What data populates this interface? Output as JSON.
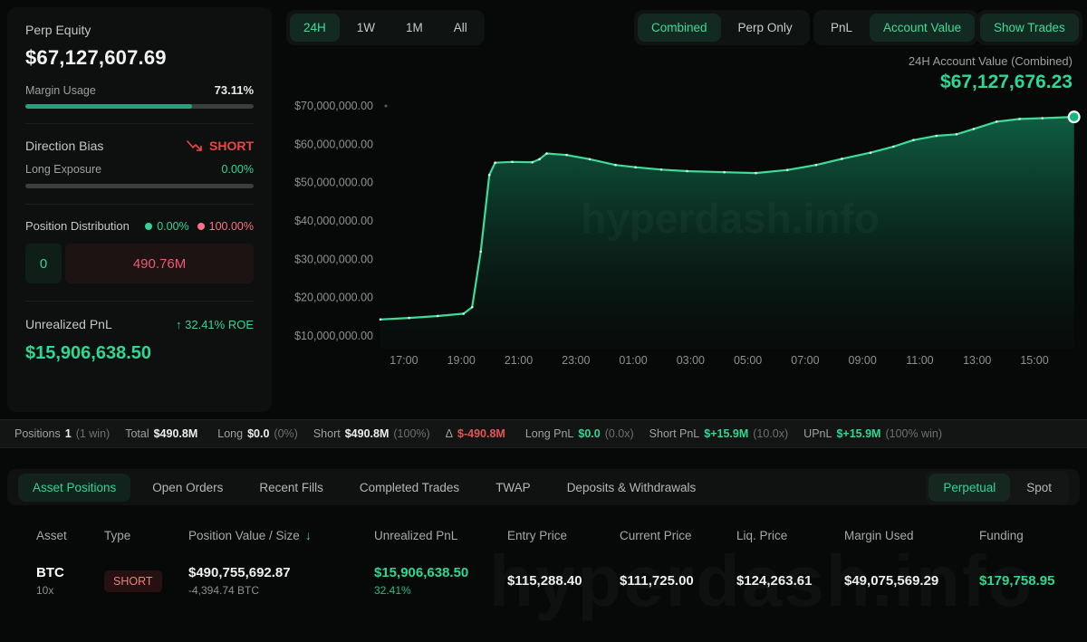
{
  "sidebar": {
    "perp_equity_label": "Perp Equity",
    "perp_equity_value": "$67,127,607.69",
    "margin_usage_label": "Margin Usage",
    "margin_usage_value": "73.11%",
    "margin_usage_pct": 73.11,
    "direction_bias_label": "Direction Bias",
    "direction_bias_value": "SHORT",
    "long_exposure_label": "Long Exposure",
    "long_exposure_value": "0.00%",
    "long_exposure_pct": 0,
    "position_distribution_label": "Position Distribution",
    "dist_long_pct": "0.00%",
    "dist_short_pct": "100.00%",
    "dist_long_amount": "0",
    "dist_short_amount": "490.76M",
    "unrealized_pnl_label": "Unrealized PnL",
    "roe_arrow": "↑",
    "roe_value": "32.41% ROE",
    "unrealized_pnl_value": "$15,906,638.50"
  },
  "controls": {
    "ranges": [
      {
        "label": "24H",
        "active": true
      },
      {
        "label": "1W",
        "active": false
      },
      {
        "label": "1M",
        "active": false
      },
      {
        "label": "All",
        "active": false
      }
    ],
    "modes": [
      {
        "label": "Combined",
        "active": true
      },
      {
        "label": "Perp Only",
        "active": false
      }
    ],
    "views": [
      {
        "label": "PnL",
        "active": false
      },
      {
        "label": "Account Value",
        "active": true
      }
    ],
    "show_trades_label": "Show Trades"
  },
  "chart_header": {
    "title": "24H Account Value (Combined)",
    "value": "$67,127,676.23"
  },
  "chart_data": {
    "type": "area",
    "title": "24H Account Value (Combined)",
    "currency": "USD",
    "value_unit": "millions USD",
    "ylim": [
      10000000,
      70000000
    ],
    "grid": false,
    "y_ticks": [
      {
        "v": 70,
        "label": "$70,000,000.00"
      },
      {
        "v": 60,
        "label": "$60,000,000.00"
      },
      {
        "v": 50,
        "label": "$50,000,000.00"
      },
      {
        "v": 40,
        "label": "$40,000,000.00"
      },
      {
        "v": 30,
        "label": "$30,000,000.00"
      },
      {
        "v": 20,
        "label": "$20,000,000.00"
      },
      {
        "v": 10,
        "label": "$10,000,000.00"
      }
    ],
    "x_tick_labels": [
      "17:00",
      "19:00",
      "21:00",
      "23:00",
      "01:00",
      "03:00",
      "05:00",
      "07:00",
      "09:00",
      "11:00",
      "13:00",
      "15:00"
    ],
    "x_first_tick_hour_offset": 0.82,
    "x_tick_step_hours": 2,
    "x_span_hours": 24.4,
    "points": [
      [
        0,
        14.3
      ],
      [
        1.0,
        14.7
      ],
      [
        2.0,
        15.2
      ],
      [
        2.9,
        15.8
      ],
      [
        3.2,
        17.5
      ],
      [
        3.5,
        32.0
      ],
      [
        3.8,
        52.0
      ],
      [
        4.0,
        55.2
      ],
      [
        4.6,
        55.4
      ],
      [
        5.3,
        55.3
      ],
      [
        5.55,
        56.1
      ],
      [
        5.8,
        57.6
      ],
      [
        6.5,
        57.2
      ],
      [
        7.3,
        56.1
      ],
      [
        8.2,
        54.6
      ],
      [
        8.9,
        54.0
      ],
      [
        9.8,
        53.4
      ],
      [
        10.7,
        53.0
      ],
      [
        12.0,
        52.7
      ],
      [
        13.1,
        52.5
      ],
      [
        14.2,
        53.3
      ],
      [
        15.2,
        54.6
      ],
      [
        16.1,
        56.2
      ],
      [
        17.1,
        57.8
      ],
      [
        17.9,
        59.4
      ],
      [
        18.6,
        61.1
      ],
      [
        19.4,
        62.2
      ],
      [
        20.1,
        62.6
      ],
      [
        20.7,
        64.0
      ],
      [
        21.5,
        65.9
      ],
      [
        22.3,
        66.6
      ],
      [
        23.1,
        66.8
      ],
      [
        24.2,
        67.13
      ]
    ],
    "end_value_label": "$67,127,676.23",
    "watermark": "hyperdash.info",
    "line_color": "#3ddc97",
    "marker_color": "#10b981"
  },
  "summary": {
    "items": [
      {
        "label": "Positions",
        "value": "1",
        "extra": "(1 win)"
      },
      {
        "label": "Total",
        "value": "$490.8M",
        "extra": ""
      },
      {
        "label": "Long",
        "value": "$0.0",
        "extra": "(0%)"
      },
      {
        "label": "Short",
        "value": "$490.8M",
        "extra": "(100%)"
      },
      {
        "label": "Δ",
        "value": "$-490.8M",
        "extra": ""
      },
      {
        "label": "Long PnL",
        "value": "$0.0",
        "extra": "(0.0x)"
      },
      {
        "label": "Short PnL",
        "value": "$+15.9M",
        "extra": "(10.0x)"
      },
      {
        "label": "UPnL",
        "value": "$+15.9M",
        "extra": "(100% win)"
      }
    ]
  },
  "tabs": {
    "left": [
      {
        "label": "Asset Positions",
        "active": true
      },
      {
        "label": "Open Orders",
        "active": false
      },
      {
        "label": "Recent Fills",
        "active": false
      },
      {
        "label": "Completed Trades",
        "active": false
      },
      {
        "label": "TWAP",
        "active": false
      },
      {
        "label": "Deposits & Withdrawals",
        "active": false
      }
    ],
    "right": [
      {
        "label": "Perpetual",
        "active": true
      },
      {
        "label": "Spot",
        "active": false
      }
    ]
  },
  "table": {
    "headers": [
      "Asset",
      "Type",
      "Position Value / Size",
      "Unrealized PnL",
      "Entry Price",
      "Current Price",
      "Liq. Price",
      "Margin Used",
      "Funding"
    ],
    "sorted_by": "Position Value / Size",
    "sort_direction": "desc",
    "sort_arrow": "↓",
    "rows": [
      {
        "asset": "BTC",
        "leverage": "10x",
        "type": "SHORT",
        "position_value": "$490,755,692.87",
        "position_size": "-4,394.74 BTC",
        "unrealized_pnl": "$15,906,638.50",
        "unrealized_pnl_pct": "32.41%",
        "entry_price": "$115,288.40",
        "current_price": "$111,725.00",
        "liq_price": "$124,263.61",
        "margin_used": "$49,075,569.29",
        "funding": "$179,758.95"
      }
    ]
  },
  "watermark": "hyperdash.info",
  "colors": {
    "accent_green": "#2dd795",
    "green_soft": "#34d399",
    "rose": "#fb7185",
    "red": "#ef4444",
    "margin_bar": "#25a27d"
  }
}
